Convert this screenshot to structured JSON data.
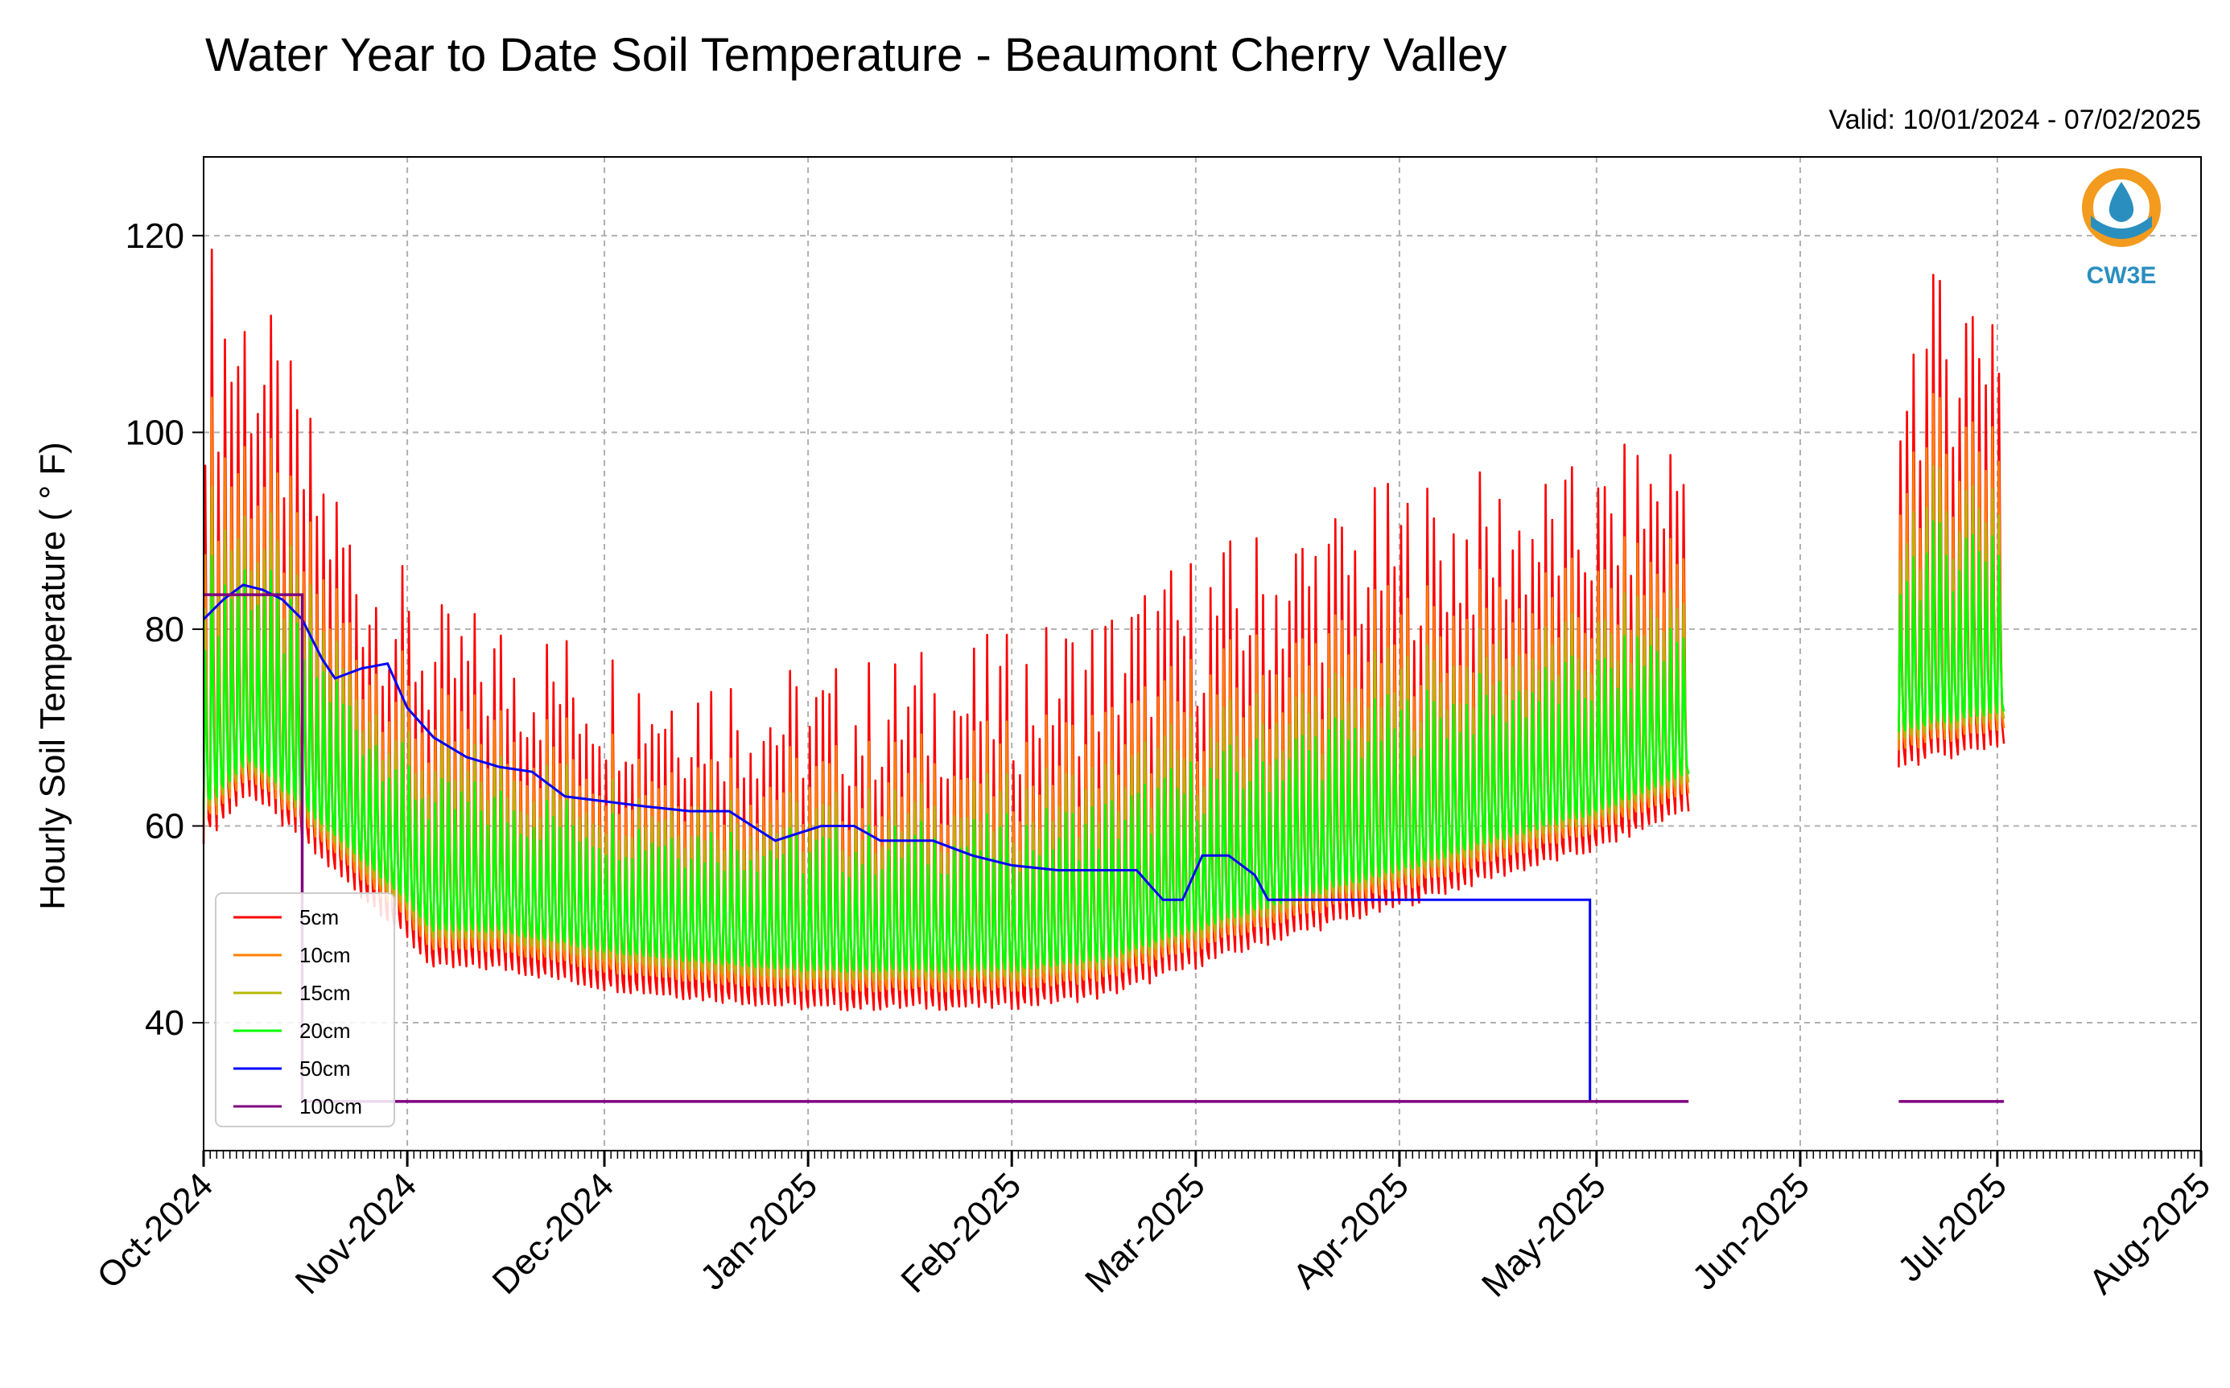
{
  "chart_data": {
    "type": "line",
    "title": "Water Year to Date Soil Temperature - Beaumont Cherry Valley",
    "subtitle": "Valid: 10/01/2024 - 07/02/2025",
    "ylabel": "Hourly Soil Temperature ( ° F)",
    "xlabel": "",
    "xlim": [
      "2024-10-01",
      "2025-08-01"
    ],
    "ylim": [
      27,
      128
    ],
    "yticks": [
      40,
      60,
      80,
      100,
      120
    ],
    "xticks": [
      {
        "date": "2024-10-01",
        "label": "Oct-2024"
      },
      {
        "date": "2024-11-01",
        "label": "Nov-2024"
      },
      {
        "date": "2024-12-01",
        "label": "Dec-2024"
      },
      {
        "date": "2025-01-01",
        "label": "Jan-2025"
      },
      {
        "date": "2025-02-01",
        "label": "Feb-2025"
      },
      {
        "date": "2025-03-01",
        "label": "Mar-2025"
      },
      {
        "date": "2025-04-01",
        "label": "Apr-2025"
      },
      {
        "date": "2025-05-01",
        "label": "May-2025"
      },
      {
        "date": "2025-06-01",
        "label": "Jun-2025"
      },
      {
        "date": "2025-07-01",
        "label": "Jul-2025"
      },
      {
        "date": "2025-08-01",
        "label": "Aug-2025"
      }
    ],
    "grid": true,
    "legend_position": "lower-left",
    "baseline": [
      {
        "date": "2024-10-01",
        "value": 56
      },
      {
        "date": "2024-10-08",
        "value": 61
      },
      {
        "date": "2024-10-15",
        "value": 57
      },
      {
        "date": "2024-10-22",
        "value": 53
      },
      {
        "date": "2024-10-29",
        "value": 49
      },
      {
        "date": "2024-11-05",
        "value": 44
      },
      {
        "date": "2024-11-15",
        "value": 44
      },
      {
        "date": "2024-12-01",
        "value": 42
      },
      {
        "date": "2024-12-15",
        "value": 41
      },
      {
        "date": "2025-01-01",
        "value": 40
      },
      {
        "date": "2025-01-15",
        "value": 40
      },
      {
        "date": "2025-02-01",
        "value": 40
      },
      {
        "date": "2025-02-15",
        "value": 41
      },
      {
        "date": "2025-03-01",
        "value": 44
      },
      {
        "date": "2025-03-15",
        "value": 47
      },
      {
        "date": "2025-04-01",
        "value": 50
      },
      {
        "date": "2025-04-15",
        "value": 53
      },
      {
        "date": "2025-05-01",
        "value": 56
      },
      {
        "date": "2025-05-15",
        "value": 60
      },
      {
        "date": "2025-06-15",
        "value": 64
      },
      {
        "date": "2025-07-01",
        "value": 66
      }
    ],
    "amplitude_by_month": [
      {
        "date": "2024-10-01",
        "value": 57
      },
      {
        "date": "2024-10-15",
        "value": 43
      },
      {
        "date": "2024-10-25",
        "value": 35
      },
      {
        "date": "2024-11-05",
        "value": 34
      },
      {
        "date": "2024-12-01",
        "value": 33
      },
      {
        "date": "2025-01-01",
        "value": 32
      },
      {
        "date": "2025-02-01",
        "value": 35
      },
      {
        "date": "2025-03-01",
        "value": 39
      },
      {
        "date": "2025-04-01",
        "value": 40
      },
      {
        "date": "2025-05-01",
        "value": 36
      },
      {
        "date": "2025-06-01",
        "value": 40
      },
      {
        "date": "2025-07-01",
        "value": 48
      }
    ],
    "data_gap": {
      "start": "2025-05-15",
      "end": "2025-06-16"
    },
    "data_end": "2025-07-02",
    "series": [
      {
        "name": "5cm",
        "color": "#ff0000",
        "amplitude_factor": 1.0
      },
      {
        "name": "10cm",
        "color": "#ff8000",
        "amplitude_factor": 0.72
      },
      {
        "name": "15cm",
        "color": "#b5b800",
        "amplitude_factor": 0.55
      },
      {
        "name": "20cm",
        "color": "#00ff00",
        "amplitude_factor": 0.42
      },
      {
        "name": "50cm",
        "color": "#0000ff",
        "points": [
          {
            "date": "2024-10-01",
            "value": 81
          },
          {
            "date": "2024-10-04",
            "value": 83
          },
          {
            "date": "2024-10-07",
            "value": 84.5
          },
          {
            "date": "2024-10-10",
            "value": 84
          },
          {
            "date": "2024-10-13",
            "value": 83
          },
          {
            "date": "2024-10-16",
            "value": 81
          },
          {
            "date": "2024-10-19",
            "value": 77
          },
          {
            "date": "2024-10-21",
            "value": 75
          },
          {
            "date": "2024-10-25",
            "value": 76
          },
          {
            "date": "2024-10-29",
            "value": 76.5
          },
          {
            "date": "2024-11-01",
            "value": 72
          },
          {
            "date": "2024-11-05",
            "value": 69
          },
          {
            "date": "2024-11-10",
            "value": 67
          },
          {
            "date": "2024-11-15",
            "value": 66
          },
          {
            "date": "2024-11-20",
            "value": 65.5
          },
          {
            "date": "2024-11-25",
            "value": 63
          },
          {
            "date": "2024-12-01",
            "value": 62.5
          },
          {
            "date": "2024-12-07",
            "value": 62
          },
          {
            "date": "2024-12-14",
            "value": 61.5
          },
          {
            "date": "2024-12-20",
            "value": 61.5
          },
          {
            "date": "2024-12-27",
            "value": 58.5
          },
          {
            "date": "2025-01-03",
            "value": 60
          },
          {
            "date": "2025-01-08",
            "value": 60
          },
          {
            "date": "2025-01-12",
            "value": 58.5
          },
          {
            "date": "2025-01-20",
            "value": 58.5
          },
          {
            "date": "2025-01-26",
            "value": 57
          },
          {
            "date": "2025-02-01",
            "value": 56
          },
          {
            "date": "2025-02-08",
            "value": 55.5
          },
          {
            "date": "2025-02-15",
            "value": 55.5
          },
          {
            "date": "2025-02-20",
            "value": 55.5
          },
          {
            "date": "2025-02-24",
            "value": 52.5
          },
          {
            "date": "2025-02-27",
            "value": 52.5
          },
          {
            "date": "2025-03-02",
            "value": 57
          },
          {
            "date": "2025-03-06",
            "value": 57
          },
          {
            "date": "2025-03-10",
            "value": 55
          },
          {
            "date": "2025-03-12",
            "value": 52.5
          },
          {
            "date": "2025-04-30",
            "value": 52.5
          },
          {
            "date": "2025-04-30",
            "value": 32
          }
        ]
      },
      {
        "name": "100cm",
        "color": "#800080",
        "segments": [
          [
            {
              "date": "2024-10-01",
              "value": 83.5
            },
            {
              "date": "2024-10-16",
              "value": 83.5
            },
            {
              "date": "2024-10-16",
              "value": 32
            },
            {
              "date": "2025-05-15",
              "value": 32
            }
          ],
          [
            {
              "date": "2025-06-16",
              "value": 32
            },
            {
              "date": "2025-07-02",
              "value": 32
            }
          ]
        ]
      }
    ]
  },
  "logo": {
    "text": "CW3E",
    "ring_color": "#f39b1e",
    "drop_color": "#2a8fbf"
  }
}
